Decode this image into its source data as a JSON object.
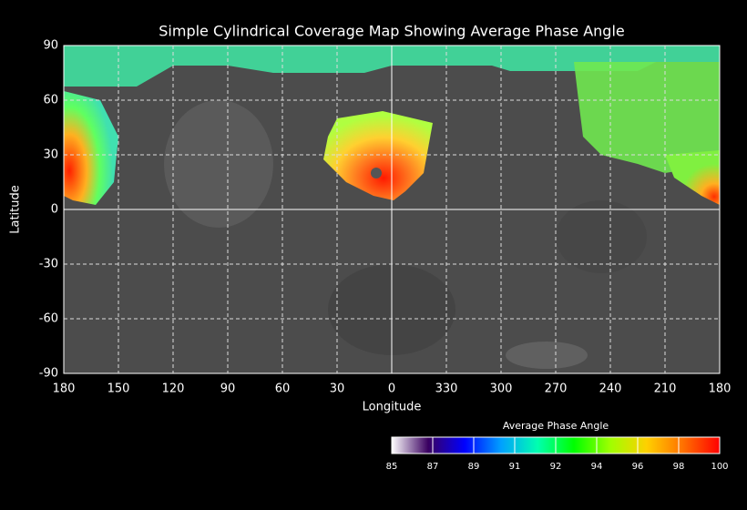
{
  "chart_data": {
    "type": "map",
    "title": "Simple Cylindrical Coverage Map Showing Average Phase Angle",
    "x_label": "Longitude",
    "y_label": "Latitude",
    "xlim": [
      180,
      -180
    ],
    "xticks": [
      180,
      150,
      120,
      90,
      60,
      30,
      0,
      {
        "value": -30,
        "label": "330"
      },
      {
        "value": -60,
        "label": "300"
      },
      {
        "value": -90,
        "label": "270"
      },
      {
        "value": -120,
        "label": "240"
      },
      {
        "value": -150,
        "label": "210"
      },
      {
        "value": -180,
        "label": "180"
      }
    ],
    "ylim": [
      -90,
      90
    ],
    "yticks": [
      -90,
      -60,
      -30,
      0,
      30,
      60,
      90
    ],
    "grid": true,
    "colorbar": {
      "title": "Average Phase Angle",
      "lim": [
        85,
        100
      ],
      "colors": [
        "#ffffff",
        "#3a0060",
        "#0000ff",
        "#00a0ff",
        "#00ffb0",
        "#00ff00",
        "#a0ff00",
        "#ffd000",
        "#ff7000",
        "#ff0000"
      ],
      "ticks": [
        85,
        {
          "value": 86.875,
          "label": "87"
        },
        {
          "value": 88.75,
          "label": "89"
        },
        {
          "value": 90.625,
          "label": "91"
        },
        {
          "value": 92.5,
          "label": "92"
        },
        {
          "value": 94.375,
          "label": "94"
        },
        {
          "value": 96.25,
          "label": "96"
        },
        {
          "value": 98.125,
          "label": "98"
        },
        100
      ]
    }
  }
}
